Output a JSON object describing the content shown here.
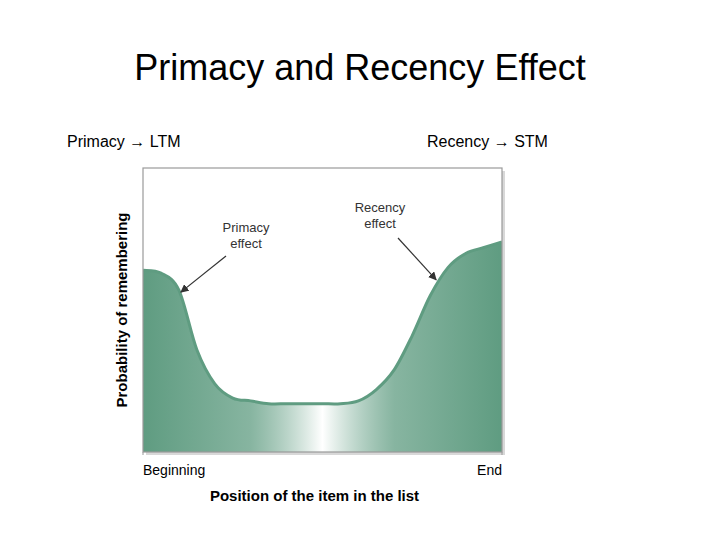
{
  "chart_data": {
    "type": "area",
    "title": "Primacy and Recency Effect",
    "subtitles": [
      "Primacy → LTM",
      "Recency → STM"
    ],
    "x_label": "Position of the item in the list",
    "y_label": "Probability of remembering",
    "annotations": [
      "Primacy effect",
      "Recency effect"
    ],
    "x": [
      0,
      1,
      2,
      3,
      4,
      5,
      6,
      7,
      8,
      9,
      10,
      11,
      12,
      13,
      14,
      15,
      16,
      17,
      18,
      19,
      20
    ],
    "values": [
      64,
      63,
      57,
      36,
      24,
      19,
      18,
      17,
      17,
      17,
      17,
      17,
      18,
      22,
      29,
      41,
      55,
      65,
      70,
      72,
      74
    ],
    "xlim": [
      0,
      20
    ],
    "ylim": [
      0,
      100
    ],
    "xticks": [
      {
        "value": 0,
        "label": "Beginning"
      },
      {
        "value": 20,
        "label": "End"
      }
    ],
    "tick_labels": "x",
    "grid": false,
    "color": "#5f9c81"
  }
}
